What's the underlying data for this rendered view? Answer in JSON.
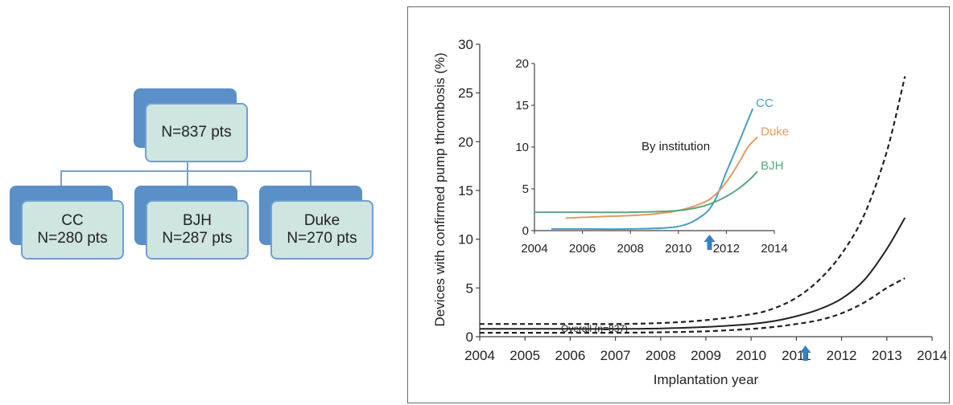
{
  "flowchart": {
    "root": {
      "line1": "N=837 pts"
    },
    "children": [
      {
        "line1": "CC",
        "line2": "N=280 pts"
      },
      {
        "line1": "BJH",
        "line2": "N=287 pts"
      },
      {
        "line1": "Duke",
        "line2": "N=270 pts"
      }
    ]
  },
  "colors": {
    "box_back": "#5a8fc8",
    "box_front": "#cfe5df",
    "cc": "#4a9ec4",
    "duke": "#e39a63",
    "bjh": "#5aa77e",
    "overall": "#222222",
    "arrow": "#3a7fc0"
  },
  "chart_data": [
    {
      "type": "line",
      "title": "",
      "xlabel": "Implantation year",
      "ylabel": "Devices with confirmed pump thrombosis (%)",
      "xlim": [
        2004,
        2014
      ],
      "ylim": [
        0,
        30
      ],
      "xticks": [
        "2004",
        "2005",
        "2006",
        "2007",
        "2008",
        "2009",
        "2010",
        "2011",
        "2012",
        "2013",
        "2014"
      ],
      "yticks": [
        "0",
        "5",
        "10",
        "15",
        "20",
        "25",
        "30"
      ],
      "annotation": "Overall (n=837)",
      "arrow_x": 2011.2,
      "series": [
        {
          "role": "estimate",
          "x": [
            2004,
            2005,
            2006,
            2007,
            2008,
            2009,
            2010,
            2010.5,
            2011,
            2011.5,
            2012,
            2012.5,
            2013,
            2013.4
          ],
          "y": [
            0.8,
            0.8,
            0.8,
            0.8,
            0.85,
            1.0,
            1.3,
            1.6,
            2.1,
            2.8,
            3.9,
            5.8,
            9.0,
            12.2
          ]
        },
        {
          "role": "upper-ci",
          "x": [
            2004,
            2005,
            2006,
            2007,
            2008,
            2009,
            2010,
            2010.5,
            2011,
            2011.5,
            2012,
            2012.5,
            2013,
            2013.4
          ],
          "y": [
            1.3,
            1.3,
            1.3,
            1.3,
            1.4,
            1.7,
            2.3,
            2.9,
            4.0,
            5.8,
            8.5,
            12.5,
            19.0,
            26.7
          ]
        },
        {
          "role": "lower-ci",
          "x": [
            2004,
            2005,
            2006,
            2007,
            2008,
            2009,
            2010,
            2010.5,
            2011,
            2011.5,
            2012,
            2012.5,
            2013,
            2013.4
          ],
          "y": [
            0.4,
            0.4,
            0.4,
            0.4,
            0.45,
            0.55,
            0.8,
            1.0,
            1.3,
            1.7,
            2.4,
            3.5,
            5.0,
            6.0
          ]
        }
      ]
    },
    {
      "type": "line",
      "title": "By institution",
      "xlim": [
        2004,
        2014
      ],
      "ylim": [
        0,
        20
      ],
      "xticks": [
        "2004",
        "2006",
        "2008",
        "2010",
        "2012",
        "2014"
      ],
      "yticks": [
        "0",
        "5",
        "10",
        "15",
        "20"
      ],
      "arrow_x": 2011.3,
      "series": [
        {
          "name": "CC",
          "x": [
            2004.7,
            2006,
            2008,
            2010,
            2011,
            2011.5,
            2012,
            2012.4,
            2012.8,
            2013.1
          ],
          "y": [
            0.2,
            0.2,
            0.2,
            0.5,
            1.8,
            3.5,
            7.0,
            9.7,
            12.5,
            14.6
          ]
        },
        {
          "name": "Duke",
          "x": [
            2005.3,
            2007,
            2008,
            2009,
            2010,
            2011,
            2011.5,
            2012,
            2012.5,
            2012.9,
            2013.3
          ],
          "y": [
            1.5,
            1.7,
            1.8,
            2.0,
            2.4,
            3.3,
            4.2,
            5.8,
            8.0,
            10.0,
            11.2
          ]
        },
        {
          "name": "BJH",
          "x": [
            2004,
            2006,
            2008,
            2010,
            2011,
            2011.5,
            2012,
            2012.5,
            2013,
            2013.3
          ],
          "y": [
            2.2,
            2.2,
            2.2,
            2.4,
            2.9,
            3.4,
            4.1,
            5.0,
            6.2,
            7.1
          ]
        }
      ]
    }
  ]
}
